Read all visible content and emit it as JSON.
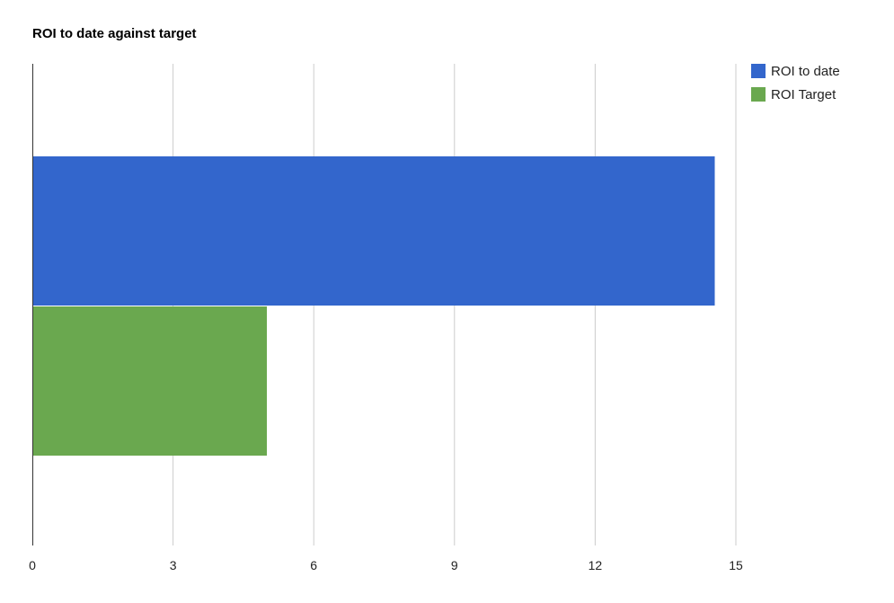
{
  "chart_data": {
    "type": "bar",
    "orientation": "horizontal",
    "title": "ROI to date against target",
    "xlabel": "",
    "ylabel": "",
    "xlim": [
      0,
      15
    ],
    "x_ticks": [
      0,
      3,
      6,
      9,
      12,
      15
    ],
    "grid": true,
    "legend_position": "right",
    "series": [
      {
        "name": "ROI to date",
        "values": [
          14.55
        ],
        "color": "#3366cc"
      },
      {
        "name": "ROI Target",
        "values": [
          5
        ],
        "color": "#6aa84f"
      }
    ]
  }
}
